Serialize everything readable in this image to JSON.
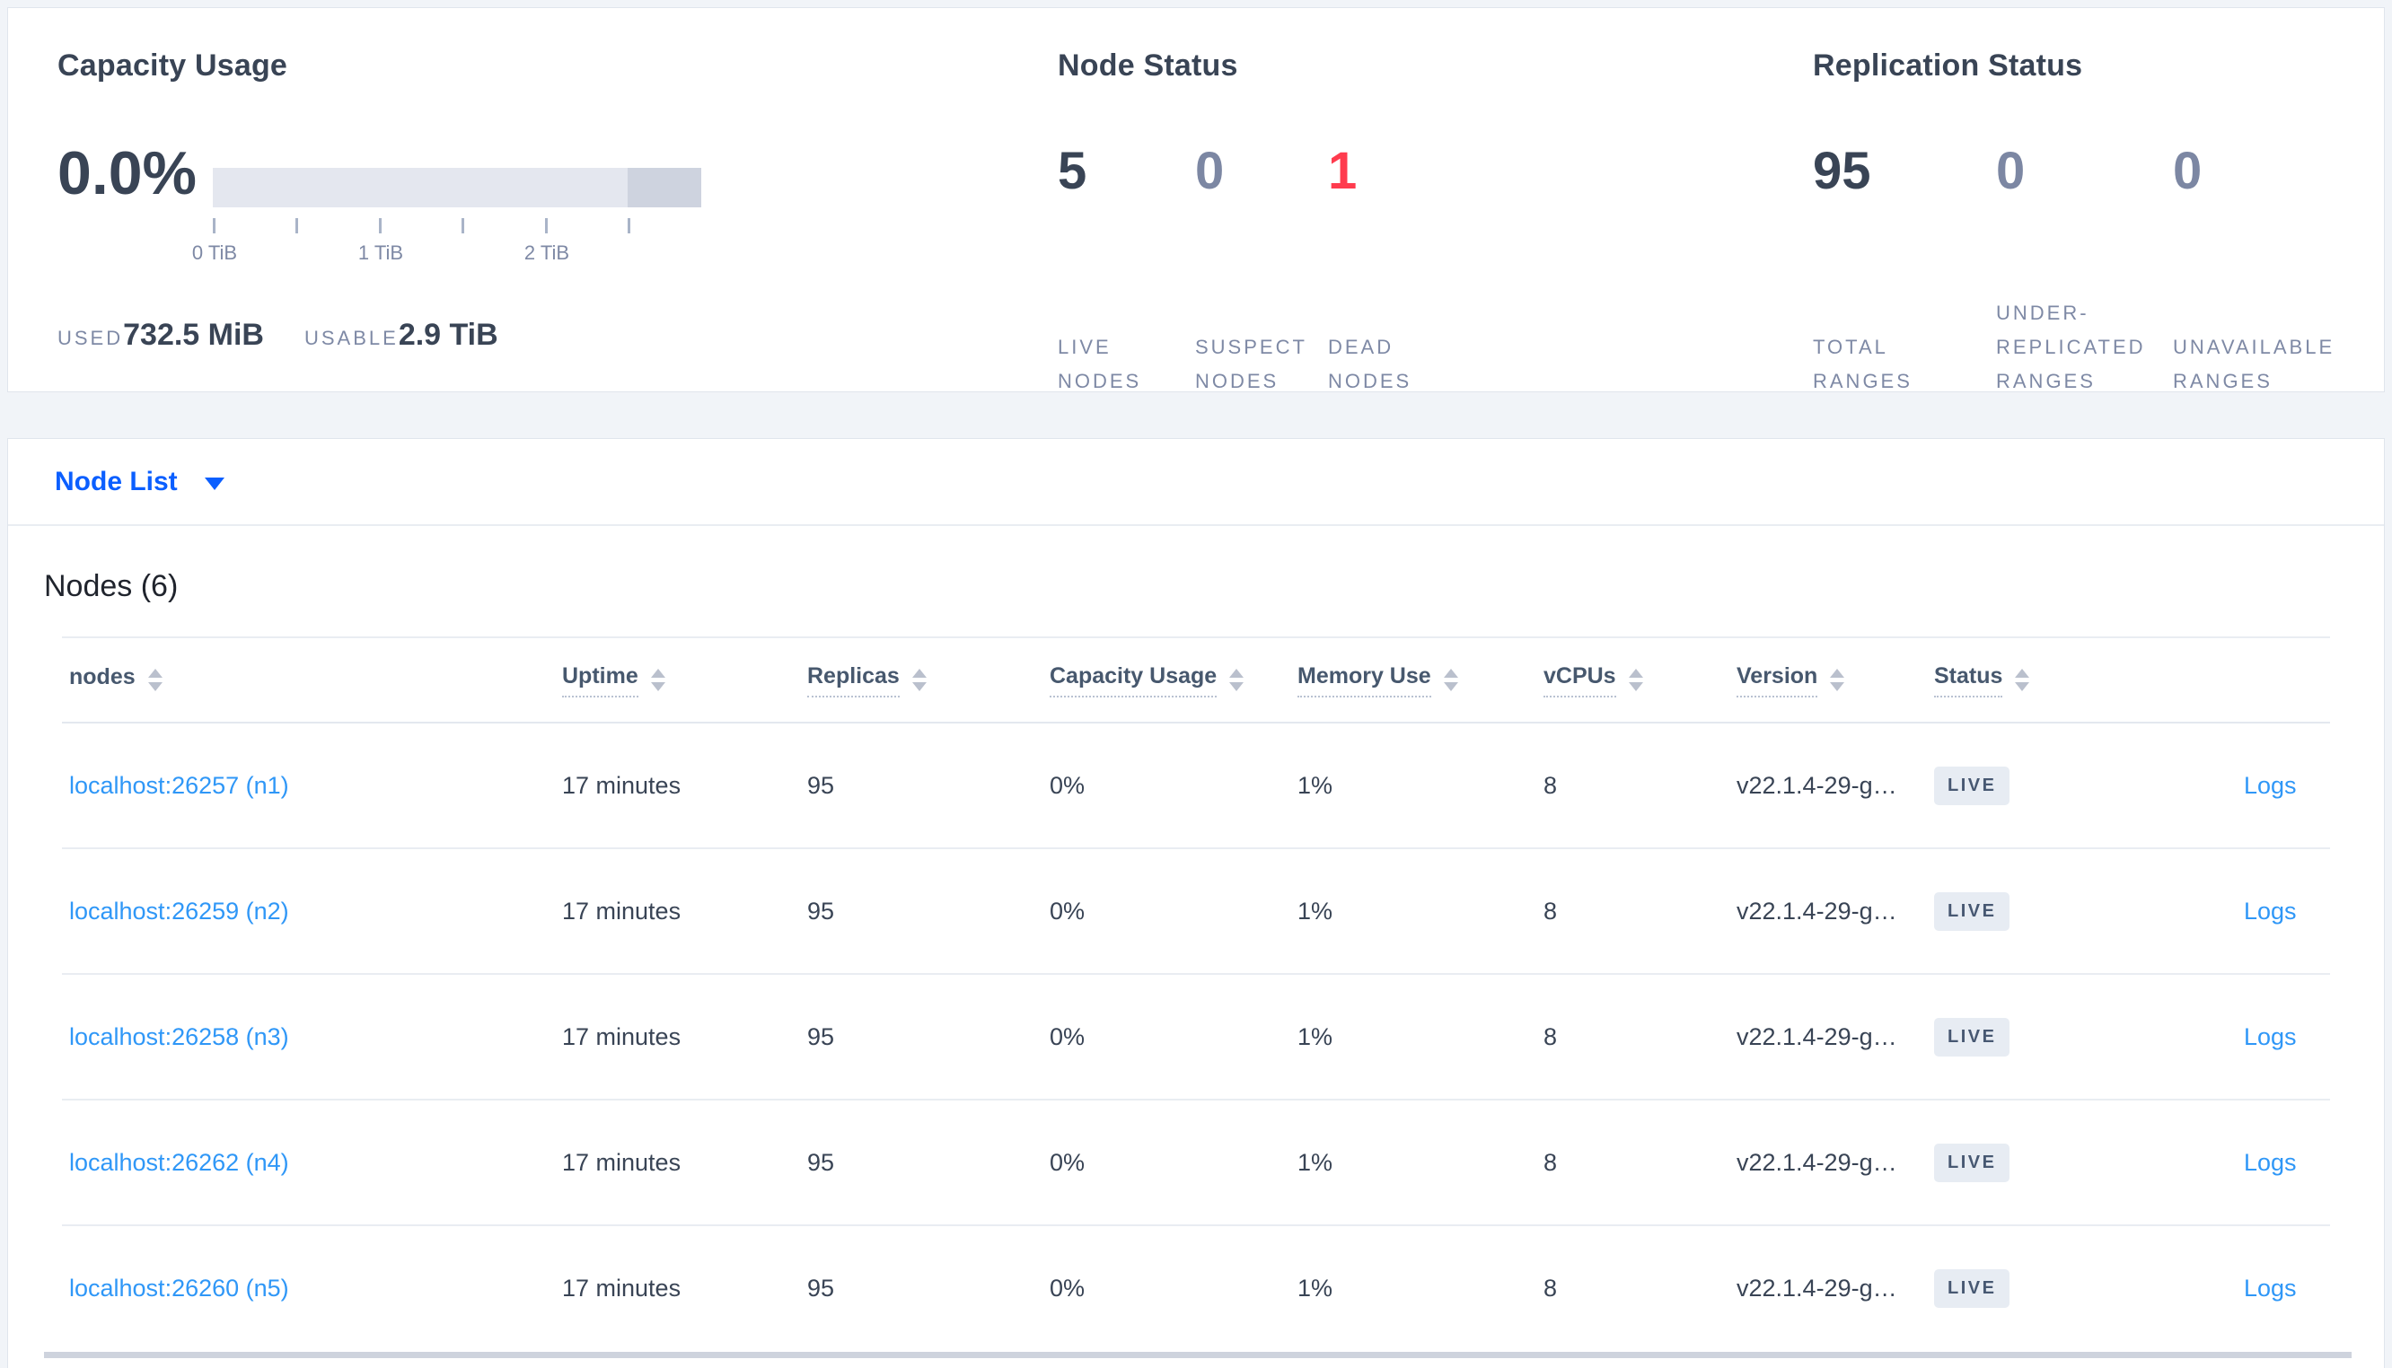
{
  "panels": {
    "capacity": {
      "title": "Capacity Usage",
      "percent": "0.0%",
      "tick_labels": [
        "0 TiB",
        "1 TiB",
        "2 TiB"
      ],
      "used_label": "USED",
      "used_value": "732.5 MiB",
      "usable_label": "USABLE",
      "usable_value": "2.9 TiB"
    },
    "node_status": {
      "title": "Node Status",
      "stats": [
        {
          "value": "5",
          "label": "LIVE NODES",
          "tone": "dark"
        },
        {
          "value": "0",
          "label": "SUSPECT NODES",
          "tone": "muted"
        },
        {
          "value": "1",
          "label": "DEAD NODES",
          "tone": "red"
        }
      ]
    },
    "replication": {
      "title": "Replication Status",
      "stats": [
        {
          "value": "95",
          "label": "TOTAL RANGES",
          "tone": "dark"
        },
        {
          "value": "0",
          "label": "UNDER-REPLICATED RANGES",
          "tone": "muted"
        },
        {
          "value": "0",
          "label": "UNAVAILABLE RANGES",
          "tone": "muted"
        }
      ]
    }
  },
  "node_list": {
    "dropdown_label": "Node List",
    "heading": "Nodes (6)",
    "table": {
      "headers": [
        {
          "label": "nodes",
          "underlined": false
        },
        {
          "label": "Uptime",
          "underlined": true
        },
        {
          "label": "Replicas",
          "underlined": true
        },
        {
          "label": "Capacity Usage",
          "underlined": true
        },
        {
          "label": "Memory Use",
          "underlined": true
        },
        {
          "label": "vCPUs",
          "underlined": true
        },
        {
          "label": "Version",
          "underlined": true
        },
        {
          "label": "Status",
          "underlined": true
        },
        {
          "label": "",
          "underlined": false
        }
      ],
      "rows": [
        {
          "address": "localhost:26257 (n1)",
          "uptime": "17 minutes",
          "replicas": "95",
          "capacity": "0%",
          "memory": "1%",
          "vcpus": "8",
          "version": "v22.1.4-29-g…",
          "status": "LIVE",
          "logs": "Logs"
        },
        {
          "address": "localhost:26259 (n2)",
          "uptime": "17 minutes",
          "replicas": "95",
          "capacity": "0%",
          "memory": "1%",
          "vcpus": "8",
          "version": "v22.1.4-29-g…",
          "status": "LIVE",
          "logs": "Logs"
        },
        {
          "address": "localhost:26258 (n3)",
          "uptime": "17 minutes",
          "replicas": "95",
          "capacity": "0%",
          "memory": "1%",
          "vcpus": "8",
          "version": "v22.1.4-29-g…",
          "status": "LIVE",
          "logs": "Logs"
        },
        {
          "address": "localhost:26262 (n4)",
          "uptime": "17 minutes",
          "replicas": "95",
          "capacity": "0%",
          "memory": "1%",
          "vcpus": "8",
          "version": "v22.1.4-29-g…",
          "status": "LIVE",
          "logs": "Logs"
        },
        {
          "address": "localhost:26260 (n5)",
          "uptime": "17 minutes",
          "replicas": "95",
          "capacity": "0%",
          "memory": "1%",
          "vcpus": "8",
          "version": "v22.1.4-29-g…",
          "status": "LIVE",
          "logs": "Logs"
        }
      ]
    }
  },
  "colors": {
    "accent_blue": "#0b5fff",
    "link_blue": "#2f97f7",
    "stat_dark": "#394455",
    "stat_muted": "#7c87a3",
    "stat_red": "#ff3b4e",
    "badge_bg": "#e7ecf3",
    "bar_light": "#e4e7ef",
    "bar_dark": "#ced3df",
    "page_bg": "#f1f4f8"
  }
}
